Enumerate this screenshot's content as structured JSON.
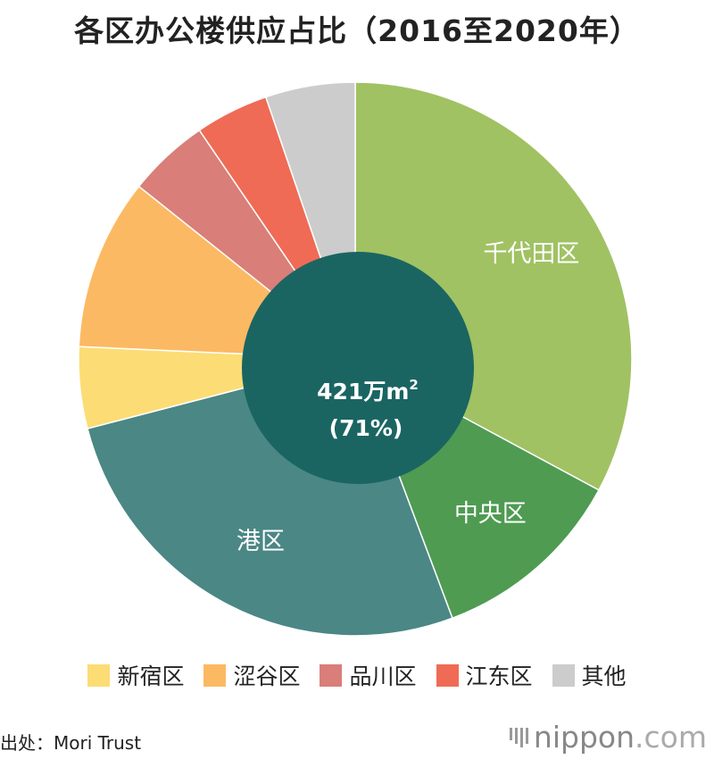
{
  "title": "各区办公楼供应占比（2016至2020年）",
  "chart_data": {
    "type": "pie",
    "slices": [
      {
        "name": "千代田区",
        "value": 34.5,
        "color": "#a0c263",
        "label_shown": true
      },
      {
        "name": "中央区",
        "value": 12.0,
        "color": "#4f9b52",
        "label_shown": true
      },
      {
        "name": "港区",
        "value": 28.0,
        "color": "#4a8785",
        "label_shown": true
      },
      {
        "name": "新宿区",
        "value": 5.0,
        "color": "#fcdc74",
        "label_shown": false
      },
      {
        "name": "涩谷区",
        "value": 10.5,
        "color": "#fcb963",
        "label_shown": false
      },
      {
        "name": "品川区",
        "value": 5.0,
        "color": "#d97e78",
        "label_shown": false
      },
      {
        "name": "江东区",
        "value": 4.5,
        "color": "#ef6b55",
        "label_shown": false
      },
      {
        "name": "其他",
        "value": 5.5,
        "color": "#cccccc",
        "label_shown": false
      }
    ],
    "center": {
      "line1_num": "421",
      "line1_unit": "万m",
      "line1_sup": "2",
      "line2": "(71%)",
      "color": "#1a6562"
    },
    "legend": {
      "placement": "bottom",
      "items": [
        "新宿区",
        "涩谷区",
        "品川区",
        "江东区",
        "其他"
      ]
    }
  },
  "source": "出处：Mori Trust",
  "brand": {
    "name": "nippon",
    "suffix": ".com"
  }
}
